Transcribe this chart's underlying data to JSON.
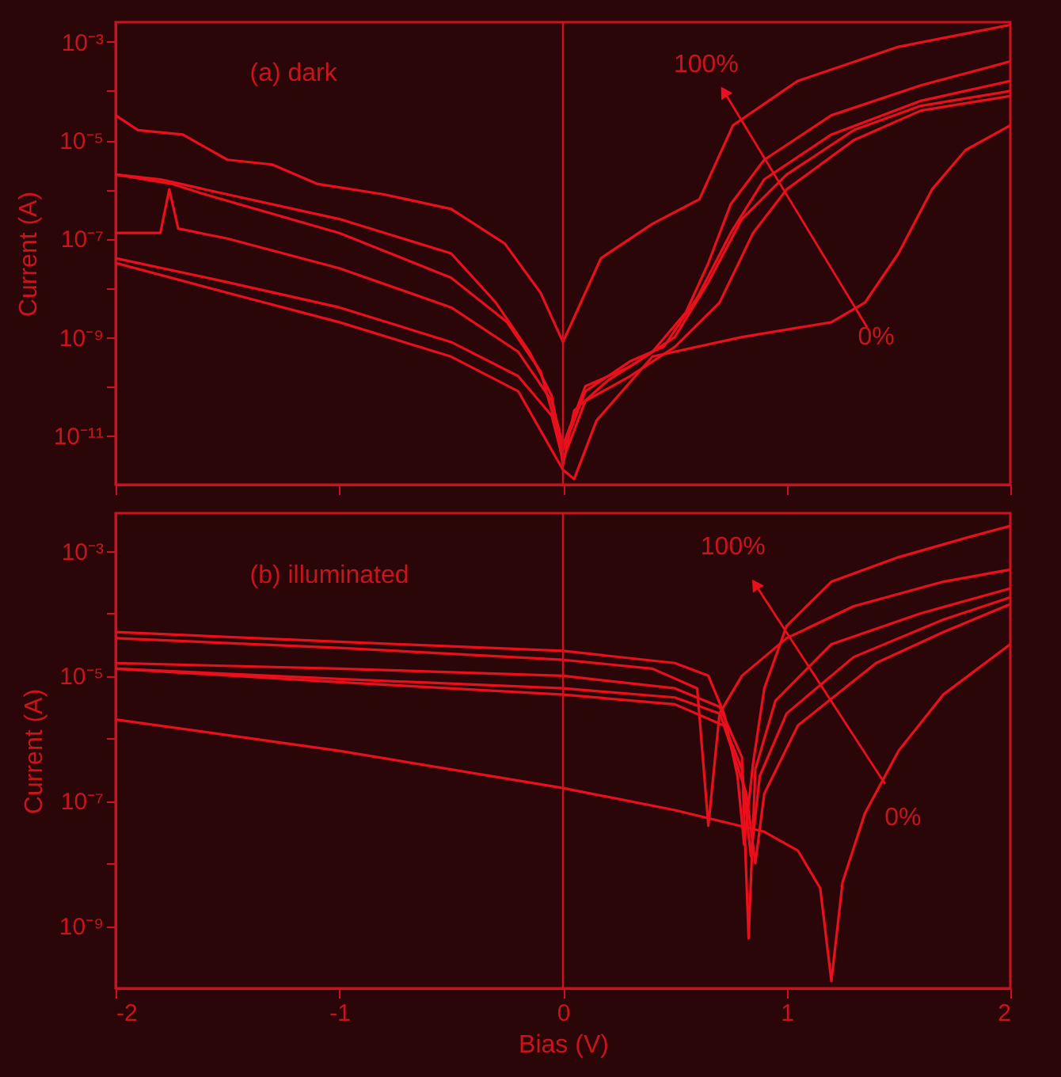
{
  "chart_data": [
    {
      "type": "line",
      "ylabel": "Current (A)",
      "xlim": [
        -2,
        2
      ],
      "xticks": [
        -2,
        -1,
        0,
        1,
        2
      ],
      "ylim": [
        1e-12,
        0.0025
      ],
      "log": "y",
      "tick_labels": "y",
      "yticks": [
        {
          "value": 0.001,
          "label": "10⁻³"
        },
        {
          "value": 0.0001,
          "label": null
        },
        {
          "value": 1e-05,
          "label": "10⁻⁵"
        },
        {
          "value": 1e-06,
          "label": null
        },
        {
          "value": 1e-07,
          "label": "10⁻⁷"
        },
        {
          "value": 1e-08,
          "label": null
        },
        {
          "value": 1e-09,
          "label": "10⁻⁹"
        },
        {
          "value": 1e-10,
          "label": null
        },
        {
          "value": 1e-11,
          "label": "10⁻¹¹"
        }
      ],
      "annotations": [
        "(a) dark",
        "100%",
        "0%"
      ],
      "ref_lines": [
        {
          "axis": "x",
          "value": 0,
          "color": "#d01020"
        }
      ],
      "series": [
        {
          "color": "#e8101c",
          "x": [
            -2,
            -1.9,
            -1.7,
            -1.5,
            -1.3,
            -1.1,
            -0.8,
            -0.5,
            -0.26,
            -0.1,
            0,
            0.17,
            0.4,
            0.61,
            0.76,
            1.05,
            1.5,
            2
          ],
          "values": [
            3.2e-05,
            1.6e-05,
            1.3e-05,
            4e-06,
            3.2e-06,
            1.3e-06,
            7.9e-07,
            4e-07,
            7.9e-08,
            7.9e-09,
            7.9e-10,
            4e-08,
            2e-07,
            6.3e-07,
            2e-05,
            0.00016,
            0.00079,
            0.0022
          ]
        },
        {
          "color": "#e8101c",
          "x": [
            -2,
            -1.8,
            -1.5,
            -1,
            -0.5,
            -0.3,
            -0.15,
            -0.05,
            0,
            0.05,
            0.2,
            0.4,
            0.55,
            0.65,
            0.75,
            0.9,
            1.2,
            1.6,
            2
          ],
          "values": [
            2e-06,
            1.6e-06,
            7.9e-07,
            2.5e-07,
            5e-08,
            5e-09,
            5e-10,
            6.3e-11,
            2.5e-12,
            3.2e-11,
            1.3e-10,
            5e-10,
            3.2e-09,
            3.2e-08,
            5e-07,
            4e-06,
            3.2e-05,
            0.00013,
            0.0004
          ]
        },
        {
          "color": "#e8101c",
          "x": [
            -2,
            -1.75,
            -1.6,
            -1,
            -0.5,
            -0.25,
            -0.1,
            0,
            0.1,
            0.3,
            0.45,
            0.6,
            0.75,
            0.9,
            1.2,
            1.6,
            2
          ],
          "values": [
            2e-06,
            1.3e-06,
            7.9e-07,
            1.3e-07,
            1.6e-08,
            2e-09,
            2e-10,
            5e-12,
            7.9e-11,
            3.2e-10,
            6.3e-10,
            6.3e-09,
            1.3e-07,
            1.6e-06,
            1.3e-05,
            6.3e-05,
            0.00016
          ]
        },
        {
          "color": "#e8101c",
          "x": [
            -2,
            -1.8,
            -1.76,
            -1.72,
            -1.5,
            -1,
            -0.5,
            -0.2,
            -0.05,
            0,
            0.1,
            0.3,
            0.5,
            0.65,
            0.8,
            1,
            1.3,
            1.6,
            2
          ],
          "values": [
            1.3e-07,
            1.3e-07,
            1e-06,
            1.6e-07,
            1e-07,
            2.5e-08,
            4e-09,
            5e-10,
            5e-11,
            6.3e-12,
            1e-10,
            2.5e-10,
            1e-09,
            1.3e-08,
            2.5e-07,
            2e-06,
            1.6e-05,
            5e-05,
            0.0001
          ]
        },
        {
          "color": "#e8101c",
          "x": [
            -2,
            -1.5,
            -1,
            -0.5,
            -0.2,
            -0.05,
            0,
            0.1,
            0.3,
            0.5,
            0.7,
            0.85,
            1,
            1.3,
            1.6,
            2
          ],
          "values": [
            4e-08,
            1.3e-08,
            4e-09,
            7.9e-10,
            1.6e-10,
            2.5e-11,
            3.2e-12,
            5e-11,
            1.6e-10,
            6.3e-10,
            5e-09,
            1.3e-07,
            1e-06,
            1e-05,
            4e-05,
            7.9e-05
          ]
        },
        {
          "color": "#e8101c",
          "x": [
            -2,
            -1.5,
            -1,
            -0.5,
            -0.2,
            0,
            0.05,
            0.15,
            0.4,
            0.8,
            1.2,
            1.35,
            1.5,
            1.65,
            1.8,
            2
          ],
          "values": [
            3.2e-08,
            7.9e-09,
            2e-09,
            4e-10,
            7.9e-11,
            2e-12,
            1.3e-12,
            2e-11,
            4e-10,
            1e-09,
            2e-09,
            5e-09,
            5e-08,
            1e-06,
            6.3e-06,
            2e-05
          ]
        }
      ]
    },
    {
      "type": "line",
      "xlabel": "Bias (V)",
      "ylabel": "Current (A)",
      "xlim": [
        -2,
        2
      ],
      "xticks": [
        -2,
        -1,
        0,
        1,
        2
      ],
      "ylim": [
        1e-10,
        0.004
      ],
      "log": "y",
      "yticks": [
        {
          "value": 0.001,
          "label": "10⁻³"
        },
        {
          "value": 0.0001,
          "label": null
        },
        {
          "value": 1e-05,
          "label": "10⁻⁵"
        },
        {
          "value": 1e-06,
          "label": null
        },
        {
          "value": 1e-07,
          "label": "10⁻⁷"
        },
        {
          "value": 1e-08,
          "label": null
        },
        {
          "value": 1e-09,
          "label": "10⁻⁹"
        }
      ],
      "annotations": [
        "(b) illuminated",
        {
          "text": "100%",
          "x": 0.86,
          "y": 0.00029
        },
        "0%"
      ],
      "ref_lines": [
        {
          "axis": "x",
          "value": 0,
          "color": "#d01020"
        }
      ],
      "series": [
        {
          "color": "#e8101c",
          "x": [
            -2,
            -1,
            0,
            0.5,
            0.65,
            0.72,
            0.78,
            0.81,
            0.85,
            0.9,
            1,
            1.2,
            1.5,
            1.8,
            2
          ],
          "values": [
            5e-05,
            3.5e-05,
            2.5e-05,
            1.6e-05,
            1e-05,
            2.5e-06,
            2.5e-07,
            2e-08,
            4e-07,
            6.3e-06,
            6.3e-05,
            0.00032,
            0.00079,
            0.0016,
            0.0025
          ]
        },
        {
          "color": "#e8101c",
          "x": [
            -2,
            -1,
            0,
            0.4,
            0.6,
            0.65,
            0.7,
            0.8,
            1,
            1.3,
            1.7,
            2
          ],
          "values": [
            4e-05,
            2.8e-05,
            1.8e-05,
            1.3e-05,
            6.3e-06,
            4e-08,
            2.5e-06,
            1e-05,
            4e-05,
            0.00013,
            0.00032,
            0.0005
          ]
        },
        {
          "color": "#e8101c",
          "x": [
            -2,
            -1,
            0,
            0.5,
            0.7,
            0.8,
            0.83,
            0.86,
            0.95,
            1.2,
            1.6,
            2
          ],
          "values": [
            1.6e-05,
            1.3e-05,
            1e-05,
            6.3e-06,
            3.2e-06,
            5e-07,
            6.3e-10,
            3.2e-07,
            4e-06,
            3.2e-05,
            0.0001,
            0.00025
          ]
        },
        {
          "color": "#e8101c",
          "x": [
            -2,
            -1,
            0,
            0.5,
            0.7,
            0.8,
            0.84,
            0.88,
            1,
            1.3,
            1.7,
            2
          ],
          "values": [
            1.3e-05,
            8.9e-06,
            6.3e-06,
            4.5e-06,
            2.5e-06,
            3.2e-07,
            1.3e-08,
            2.5e-07,
            2.5e-06,
            2e-05,
            7.9e-05,
            0.00018
          ]
        },
        {
          "color": "#e8101c",
          "x": [
            -2,
            -1,
            0,
            0.5,
            0.72,
            0.82,
            0.86,
            0.9,
            1.05,
            1.4,
            1.7,
            2
          ],
          "values": [
            1.3e-05,
            7.9e-06,
            5e-06,
            3.5e-06,
            1.6e-06,
            1.3e-07,
            1e-08,
            1.3e-07,
            1.6e-06,
            1.6e-05,
            5e-05,
            0.00014
          ]
        },
        {
          "color": "#e8101c",
          "x": [
            -2,
            -1,
            0,
            0.5,
            0.9,
            1.05,
            1.15,
            1.2,
            1.25,
            1.35,
            1.5,
            1.7,
            2
          ],
          "values": [
            2e-06,
            6.3e-07,
            1.6e-07,
            7.1e-08,
            3.2e-08,
            1.6e-08,
            4e-09,
            1.3e-10,
            5e-09,
            6.3e-08,
            6.3e-07,
            5e-06,
            3.2e-05
          ]
        }
      ]
    }
  ]
}
